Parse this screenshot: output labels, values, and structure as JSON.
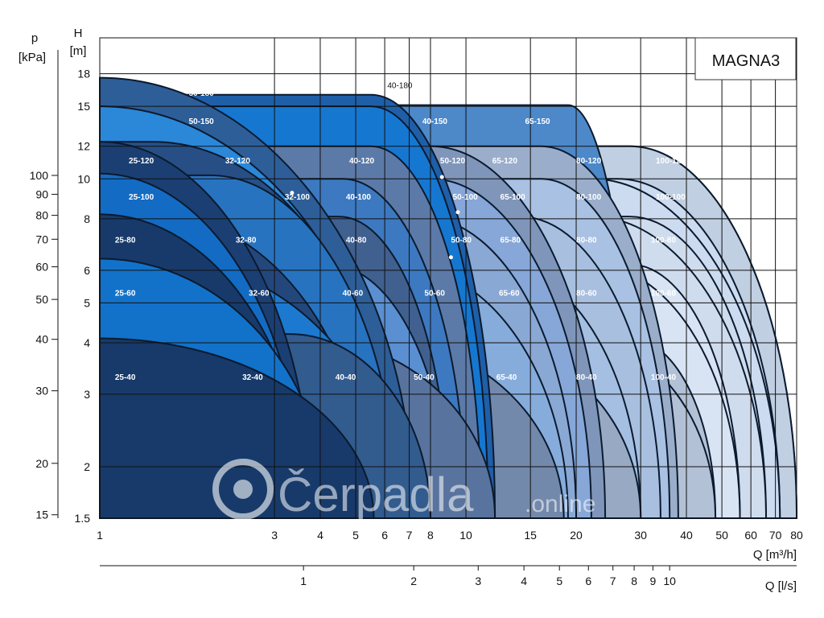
{
  "chart_data": {
    "type": "area",
    "title": "MAGNA3",
    "x_axis": {
      "label": "Q [m³/h]",
      "scale": "log",
      "range": [
        1,
        80
      ],
      "ticks": [
        1,
        3,
        4,
        5,
        6,
        7,
        8,
        10,
        15,
        20,
        30,
        40,
        50,
        60,
        70,
        80
      ]
    },
    "x2_axis": {
      "label": "Q [l/s]",
      "scale": "log",
      "ticks": [
        1,
        2,
        3,
        4,
        5,
        6,
        7,
        8,
        9,
        10
      ]
    },
    "y_axis": {
      "label": "H",
      "unit": "[m]",
      "scale": "log",
      "range": [
        1.5,
        22
      ],
      "ticks": [
        1.5,
        2,
        3,
        4,
        5,
        6,
        8,
        10,
        12,
        15,
        18
      ]
    },
    "y2_axis": {
      "label": "p",
      "unit": "[kPa]",
      "scale": "log",
      "ticks": [
        15,
        20,
        30,
        40,
        50,
        60,
        70,
        80,
        90,
        100
      ]
    },
    "grid": true,
    "series": [
      {
        "name": "80-120",
        "hmax": 12,
        "qflat": 28,
        "qmax": 80,
        "color": "#c1cfe2"
      },
      {
        "name": "100-120",
        "hmax": 12,
        "qflat": 28,
        "qmax": 80,
        "color": "#c1cfe2"
      },
      {
        "name": "100-100",
        "hmax": 10,
        "qflat": 26,
        "qmax": 72,
        "color": "#ccdbef"
      },
      {
        "name": "80-100",
        "hmax": 10,
        "qflat": 22,
        "qmax": 72,
        "color": "#ccdbef"
      },
      {
        "name": "100-80",
        "hmax": 8.1,
        "qflat": 28,
        "qmax": 66,
        "color": "#cfdcee"
      },
      {
        "name": "80-80",
        "hmax": 8.1,
        "qflat": 22,
        "qmax": 66,
        "color": "#cfdcee"
      },
      {
        "name": "100-60",
        "hmax": 6.2,
        "qflat": 28,
        "qmax": 56,
        "color": "#d8e4f4"
      },
      {
        "name": "80-60",
        "hmax": 6.2,
        "qflat": 22,
        "qmax": 56,
        "color": "#d8e4f4"
      },
      {
        "name": "100-40",
        "hmax": 4.1,
        "qflat": 28,
        "qmax": 48,
        "color": "#b3c1d6"
      },
      {
        "name": "80-40",
        "hmax": 4.1,
        "qflat": 20,
        "qmax": 48,
        "color": "#b3c1d6"
      },
      {
        "name": "65-150",
        "hmax": 15.1,
        "qflat": 19,
        "qmax": 29,
        "color": "#4d88c9"
      },
      {
        "name": "65-120",
        "hmax": 12,
        "qflat": 16,
        "qmax": 38,
        "color": "#9aaecb"
      },
      {
        "name": "65-100",
        "hmax": 10,
        "qflat": 16,
        "qmax": 36,
        "color": "#a9c1e2"
      },
      {
        "name": "65-80",
        "hmax": 8.1,
        "qflat": 14,
        "qmax": 34,
        "color": "#a8bfdf"
      },
      {
        "name": "65-60",
        "hmax": 6.2,
        "qflat": 12,
        "qmax": 30,
        "color": "#a4bfe2"
      },
      {
        "name": "65-40",
        "hmax": 4.1,
        "qflat": 10,
        "qmax": 30,
        "color": "#97a9c3"
      },
      {
        "name": "50-120",
        "hmax": 12,
        "qflat": 8,
        "qmax": 24,
        "color": "#7f96ba"
      },
      {
        "name": "50-100",
        "hmax": 10,
        "qflat": 8,
        "qmax": 22,
        "color": "#86a7d8"
      },
      {
        "name": "50-80",
        "hmax": 8.1,
        "qflat": 7.5,
        "qmax": 20,
        "color": "#8aa8d4"
      },
      {
        "name": "50-60",
        "hmax": 6.2,
        "qflat": 6.5,
        "qmax": 19,
        "color": "#86acdc"
      },
      {
        "name": "50-40",
        "hmax": 4.1,
        "qflat": 5.5,
        "qmax": 18.5,
        "color": "#7389ab"
      },
      {
        "name": "40-180",
        "hmax": 16,
        "qflat": 5.5,
        "qmax": 12,
        "color": "#1f5fa8"
      },
      {
        "name": "40-150",
        "hmax": 15,
        "qflat": 5.5,
        "qmax": 11.5,
        "color": "#1677d0"
      },
      {
        "name": "40-120",
        "hmax": 12,
        "qflat": 5.5,
        "qmax": 11,
        "color": "#5c7aa8"
      },
      {
        "name": "40-100",
        "hmax": 10,
        "qflat": 4.6,
        "qmax": 10,
        "color": "#3d79c0"
      },
      {
        "name": "40-80",
        "hmax": 8.1,
        "qflat": 4.5,
        "qmax": 9,
        "color": "#40608f"
      },
      {
        "name": "40-60",
        "hmax": 6.2,
        "qflat": 4.2,
        "qmax": 9,
        "color": "#5a8fd1"
      },
      {
        "name": "40-40",
        "hmax": 4.1,
        "qflat": 3.6,
        "qmax": 12,
        "color": "#58739e"
      },
      {
        "name": "50-180",
        "hmax": 17.6,
        "qflat": 1,
        "qmax": 7.2,
        "color": "#2d5e98"
      },
      {
        "name": "50-150",
        "hmax": 15,
        "qflat": 1,
        "qmax": 6.5,
        "color": "#2b87d8"
      },
      {
        "name": "32-120",
        "hmax": 12.3,
        "qflat": 1.4,
        "qmax": 6.5,
        "color": "#274f86"
      },
      {
        "name": "32-100",
        "hmax": 10.2,
        "qflat": 2,
        "qmax": 6.5,
        "color": "#2773c0"
      },
      {
        "name": "32-80",
        "hmax": 8.2,
        "qflat": 1.4,
        "qmax": 5.5,
        "color": "#24477b"
      },
      {
        "name": "32-60",
        "hmax": 6.4,
        "qflat": 1.4,
        "qmax": 6.5,
        "color": "#1d79cf"
      },
      {
        "name": "32-40",
        "hmax": 4.2,
        "qflat": 3.3,
        "qmax": 8,
        "color": "#325b8e"
      },
      {
        "name": "25-120",
        "hmax": 12.3,
        "qflat": 1,
        "qmax": 3.8,
        "color": "#1b3f73"
      },
      {
        "name": "25-100",
        "hmax": 10.3,
        "qflat": 1,
        "qmax": 3.6,
        "color": "#136bc3"
      },
      {
        "name": "25-80",
        "hmax": 8.2,
        "qflat": 1,
        "qmax": 3.7,
        "color": "#173a6a"
      },
      {
        "name": "25-60",
        "hmax": 6.4,
        "qflat": 1,
        "qmax": 4.2,
        "color": "#1272ca"
      },
      {
        "name": "25-40",
        "hmax": 4.1,
        "qflat": 1,
        "qmax": 5.6,
        "color": "#173a6a"
      }
    ],
    "labels": [
      {
        "text": "40-180",
        "q": 6.1,
        "h": 16.6
      },
      {
        "text": "50-180",
        "q": 1.75,
        "h": 15.9
      },
      {
        "text": "50-150",
        "q": 1.75,
        "h": 13.6
      },
      {
        "text": "40-150",
        "q": 7.6,
        "h": 13.6
      },
      {
        "text": "65-150",
        "q": 14.5,
        "h": 13.6
      },
      {
        "text": "25-120",
        "q": 1.2,
        "h": 10.9
      },
      {
        "text": "32-120",
        "q": 2.2,
        "h": 10.9
      },
      {
        "text": "40-120",
        "q": 4.8,
        "h": 10.9
      },
      {
        "text": "50-120",
        "q": 8.5,
        "h": 10.9
      },
      {
        "text": "65-120",
        "q": 11.8,
        "h": 10.9
      },
      {
        "text": "80-120",
        "q": 20,
        "h": 10.9
      },
      {
        "text": "100-120",
        "q": 33,
        "h": 10.9
      },
      {
        "text": "25-100",
        "q": 1.2,
        "h": 8.9
      },
      {
        "text": "32-100",
        "q": 3.2,
        "h": 8.9
      },
      {
        "text": "40-100",
        "q": 4.7,
        "h": 8.9
      },
      {
        "text": "50-100",
        "q": 9.2,
        "h": 8.9
      },
      {
        "text": "65-100",
        "q": 12.4,
        "h": 8.9
      },
      {
        "text": "80-100",
        "q": 20,
        "h": 8.9
      },
      {
        "text": "100-100",
        "q": 33,
        "h": 8.9
      },
      {
        "text": "25-80",
        "q": 1.1,
        "h": 7.0
      },
      {
        "text": "32-80",
        "q": 2.35,
        "h": 7.0
      },
      {
        "text": "40-80",
        "q": 4.7,
        "h": 7.0
      },
      {
        "text": "50-80",
        "q": 9.1,
        "h": 7.0
      },
      {
        "text": "65-80",
        "q": 12.4,
        "h": 7.0
      },
      {
        "text": "80-80",
        "q": 20,
        "h": 7.0
      },
      {
        "text": "100-80",
        "q": 32,
        "h": 7.0
      },
      {
        "text": "25-60",
        "q": 1.1,
        "h": 5.2
      },
      {
        "text": "32-60",
        "q": 2.55,
        "h": 5.2
      },
      {
        "text": "40-60",
        "q": 4.6,
        "h": 5.2
      },
      {
        "text": "50-60",
        "q": 7.7,
        "h": 5.2
      },
      {
        "text": "65-60",
        "q": 12.3,
        "h": 5.2
      },
      {
        "text": "80-60",
        "q": 20,
        "h": 5.2
      },
      {
        "text": "100-60",
        "q": 32,
        "h": 5.2
      },
      {
        "text": "25-40",
        "q": 1.1,
        "h": 3.25
      },
      {
        "text": "32-40",
        "q": 2.45,
        "h": 3.25
      },
      {
        "text": "40-40",
        "q": 4.4,
        "h": 3.25
      },
      {
        "text": "50-40",
        "q": 7.2,
        "h": 3.25
      },
      {
        "text": "65-40",
        "q": 12.1,
        "h": 3.25
      },
      {
        "text": "80-40",
        "q": 20,
        "h": 3.25
      },
      {
        "text": "100-40",
        "q": 32,
        "h": 3.25
      }
    ]
  },
  "watermark": {
    "main": "Čerpadla",
    "suffix": ".online"
  }
}
